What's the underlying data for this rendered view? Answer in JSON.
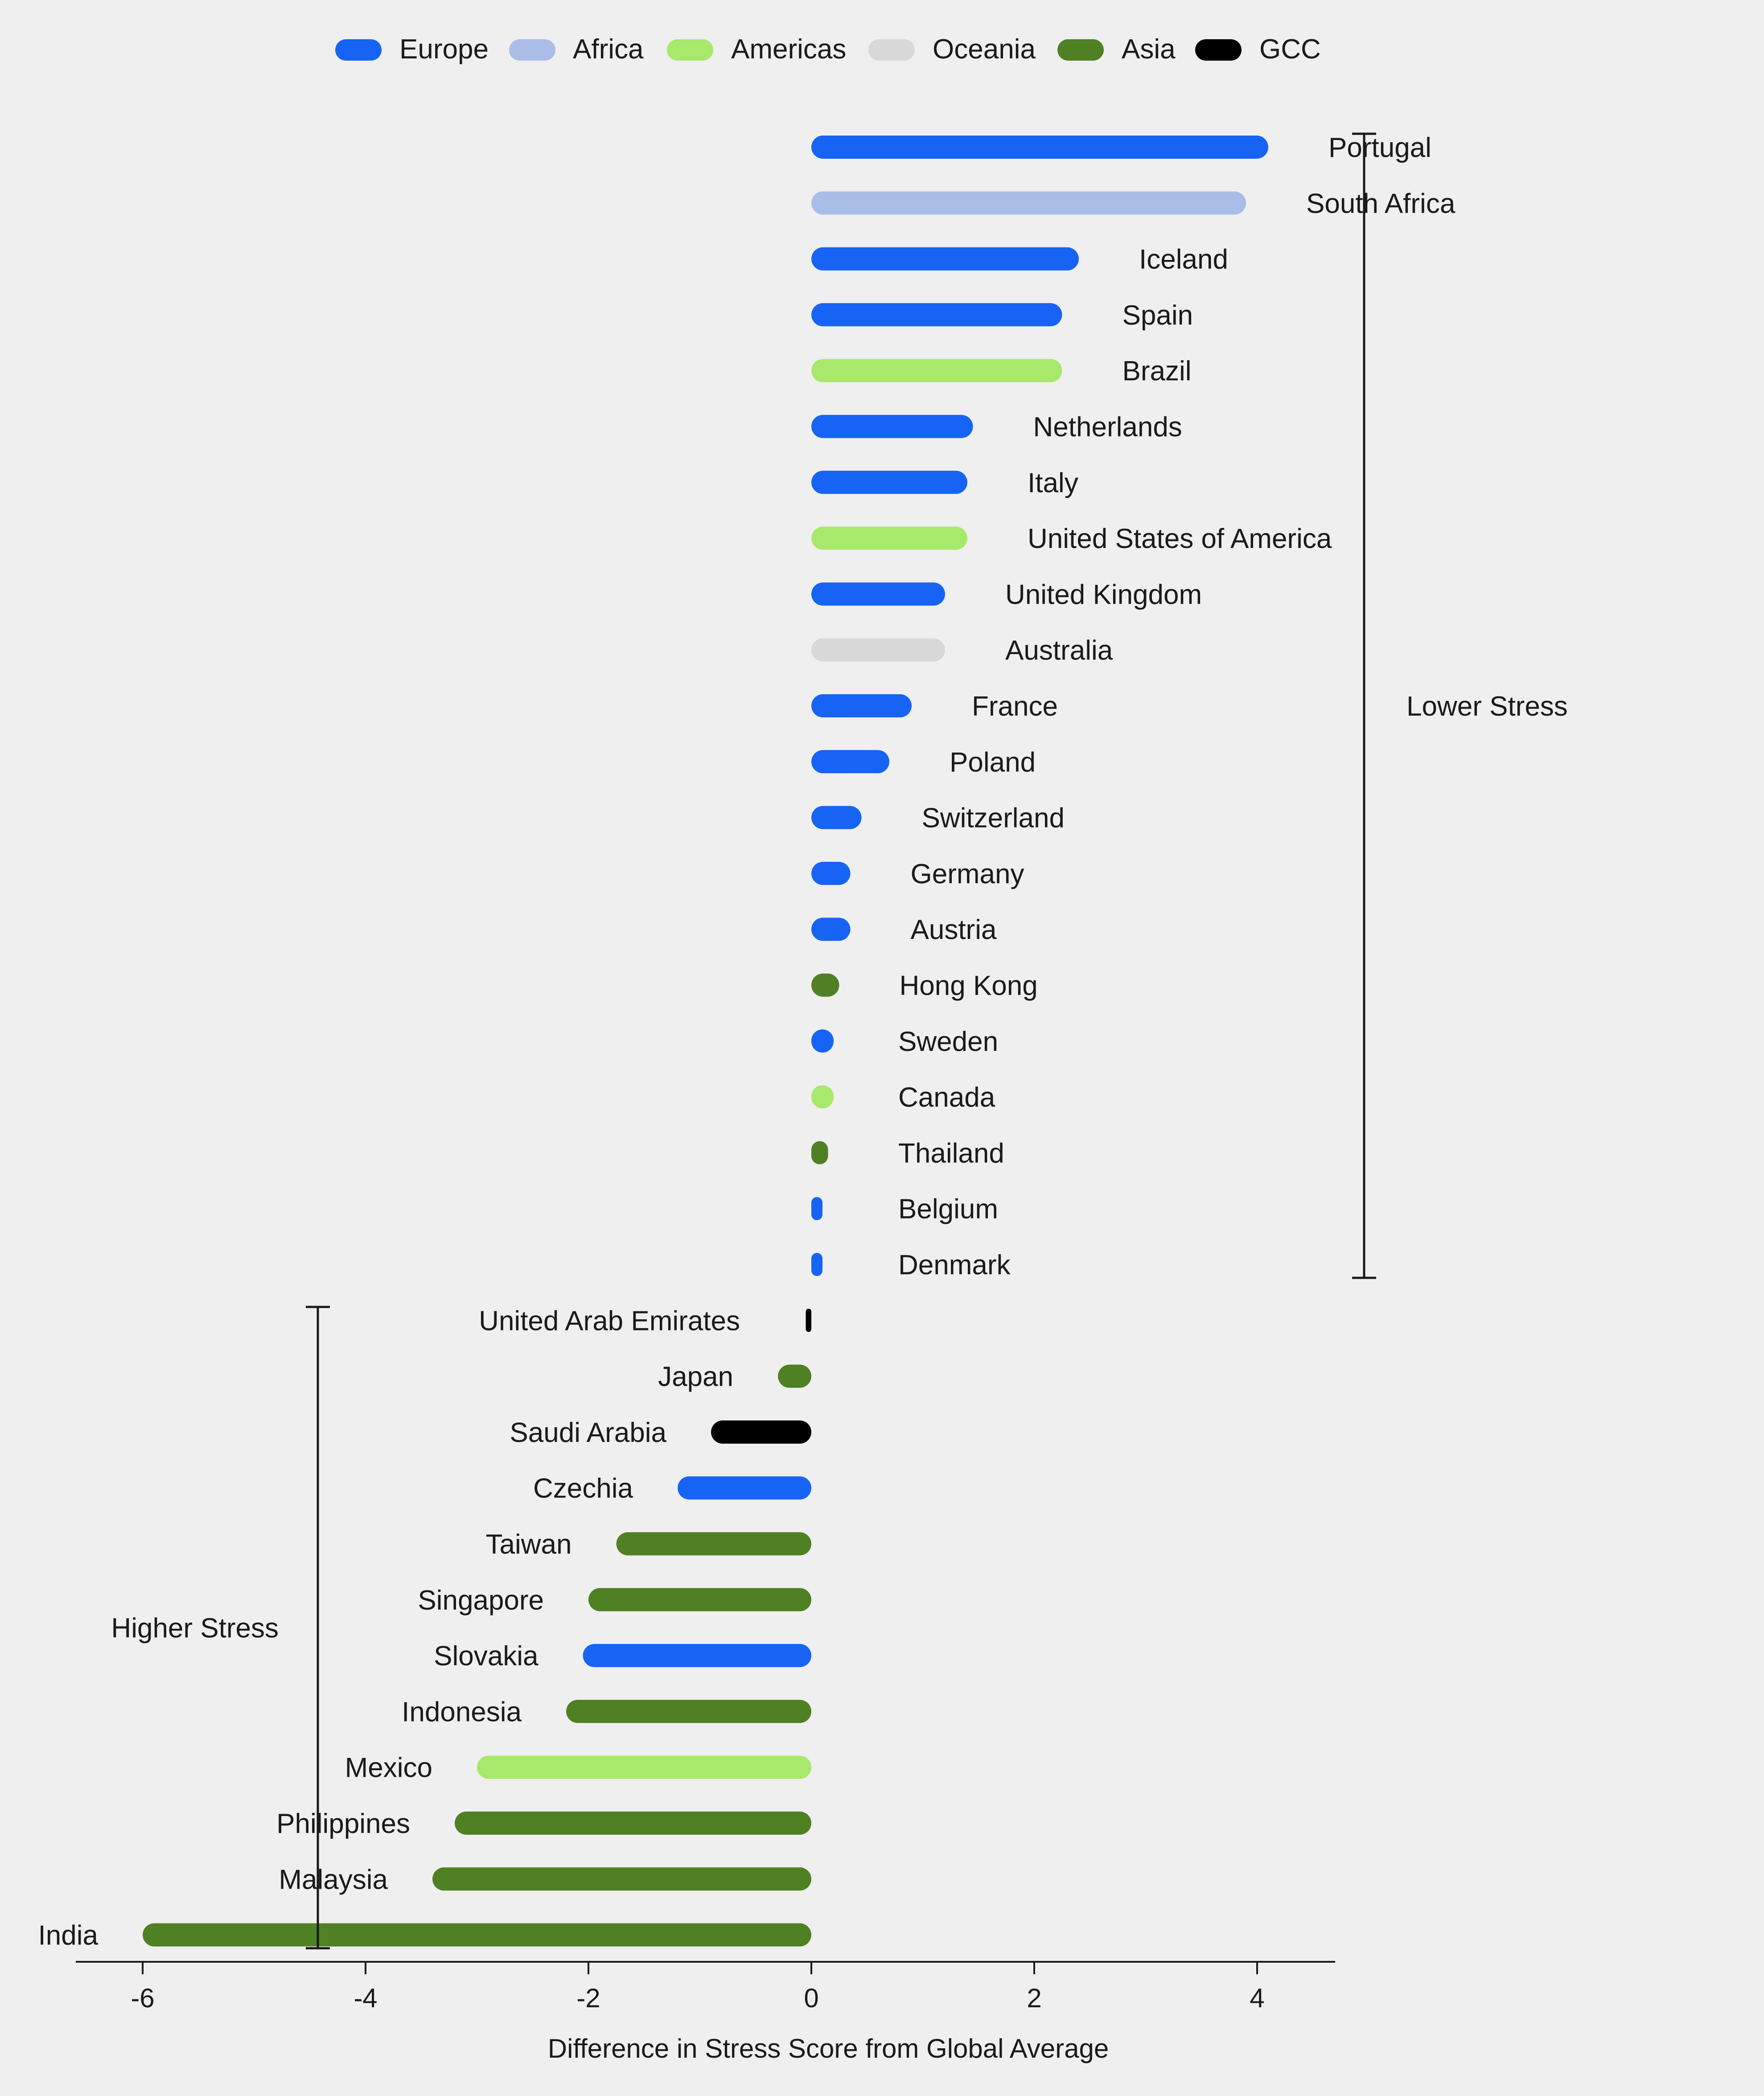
{
  "colors": {
    "Europe": "#1764f4",
    "Africa": "#a9bde7",
    "Americas": "#a8e86a",
    "Oceania": "#d8d8d8",
    "Asia": "#4f8024",
    "GCC": "#000000",
    "background": "#efefef",
    "text": "#1a1a1a"
  },
  "chart_data": {
    "type": "bar",
    "orientation": "horizontal",
    "xlabel": "Difference in Stress Score from Global Average",
    "xlim": [
      -6.6,
      4.7
    ],
    "x_ticks": [
      -6,
      -4,
      -2,
      0,
      2,
      4
    ],
    "x_tick_labels": [
      "-6",
      "-4",
      "-2",
      "0",
      "2",
      "4"
    ],
    "legend": {
      "placement": "top",
      "entries": [
        "Europe",
        "Africa",
        "Americas",
        "Oceania",
        "Asia",
        "GCC"
      ]
    },
    "brackets": [
      {
        "label": "Lower Stress",
        "side": "right",
        "from": "Portugal",
        "to": "Denmark"
      },
      {
        "label": "Higher Stress",
        "side": "left",
        "from": "United Arab Emirates",
        "to": "India"
      }
    ],
    "categories": [
      "Portugal",
      "South Africa",
      "Iceland",
      "Spain",
      "Brazil",
      "Netherlands",
      "Italy",
      "United States of America",
      "United Kingdom",
      "Australia",
      "France",
      "Poland",
      "Switzerland",
      "Germany",
      "Austria",
      "Hong Kong",
      "Sweden",
      "Canada",
      "Thailand",
      "Belgium",
      "Denmark",
      "United Arab Emirates",
      "Japan",
      "Saudi Arabia",
      "Czechia",
      "Taiwan",
      "Singapore",
      "Slovakia",
      "Indonesia",
      "Mexico",
      "Philippines",
      "Malaysia",
      "India"
    ],
    "regions": [
      "Europe",
      "Africa",
      "Europe",
      "Europe",
      "Americas",
      "Europe",
      "Europe",
      "Americas",
      "Europe",
      "Oceania",
      "Europe",
      "Europe",
      "Europe",
      "Europe",
      "Europe",
      "Asia",
      "Europe",
      "Americas",
      "Asia",
      "Europe",
      "Europe",
      "GCC",
      "Asia",
      "GCC",
      "Europe",
      "Asia",
      "Asia",
      "Europe",
      "Asia",
      "Americas",
      "Asia",
      "Asia",
      "Asia"
    ],
    "values": [
      4.1,
      3.9,
      2.4,
      2.25,
      2.25,
      1.45,
      1.4,
      1.4,
      1.2,
      1.2,
      0.9,
      0.7,
      0.45,
      0.35,
      0.35,
      0.25,
      0.2,
      0.2,
      0.15,
      0.1,
      0.1,
      -0.05,
      -0.3,
      -0.9,
      -1.2,
      -1.75,
      -2.0,
      -2.05,
      -2.2,
      -3.0,
      -3.2,
      -3.4,
      -6.0
    ]
  }
}
